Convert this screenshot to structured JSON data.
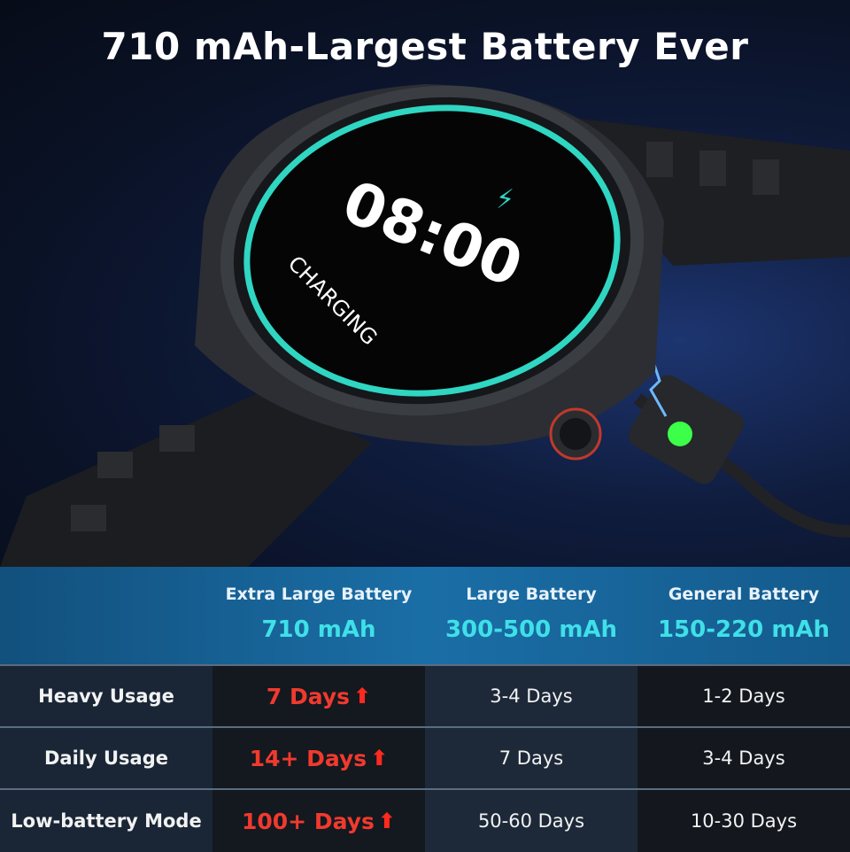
{
  "title": "710 mAh-Largest Battery Ever",
  "watch": {
    "time": "08:00",
    "status": "CHARGING",
    "icon": "lightning-bolt-icon",
    "ring_color": "#2fd6c2"
  },
  "table": {
    "columns": [
      {
        "name": "Extra Large Battery",
        "capacity": "710 mAh"
      },
      {
        "name": "Large Battery",
        "capacity": "300-500 mAh"
      },
      {
        "name": "General Battery",
        "capacity": "150-220 mAh"
      }
    ],
    "rows": [
      {
        "label": "Heavy Usage",
        "values": [
          "7 Days",
          "3-4 Days",
          "1-2 Days"
        ]
      },
      {
        "label": "Daily Usage",
        "values": [
          "14+ Days",
          "7 Days",
          "3-4 Days"
        ]
      },
      {
        "label": "Low-battery Mode",
        "values": [
          "100+ Days",
          "50-60 Days",
          "10-30 Days"
        ]
      }
    ],
    "highlight_color": "#f03a2e",
    "capacity_color": "#3fe0e8"
  }
}
